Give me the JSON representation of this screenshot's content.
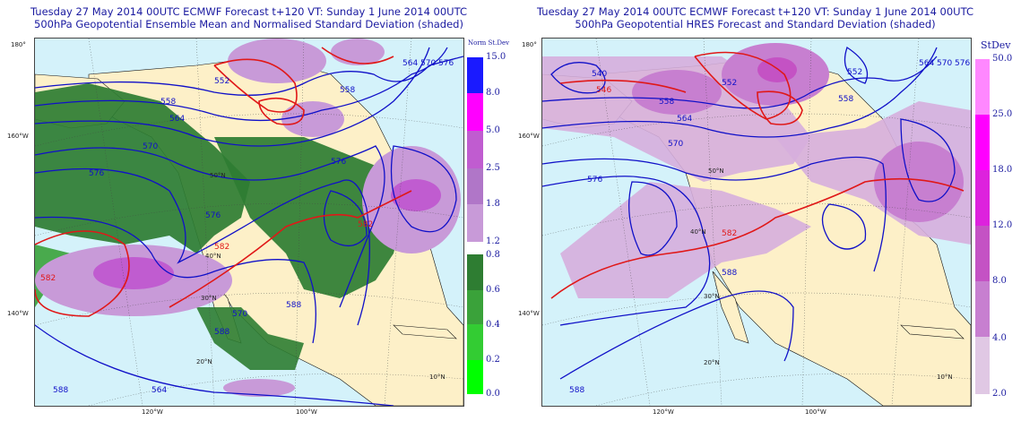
{
  "left_panel": {
    "title_line1": "Tuesday 27 May 2014 00UTC ECMWF Forecast t+120  VT: Sunday 1 June 2014 00UTC",
    "title_line2": "500hPa Geopotential Ensemble Mean and Normalised Standard Deviation (shaded)",
    "colorbar_title": "Norm St.Dev",
    "colorbar_upper": [
      {
        "label": "15.0",
        "color": "#ffffff"
      },
      {
        "label": "8.0",
        "color": "#1a1aff"
      },
      {
        "label": "5.0",
        "color": "#ff00ff"
      },
      {
        "label": "2.5",
        "color": "#c05cd0"
      },
      {
        "label": "1.8",
        "color": "#b076c8"
      },
      {
        "label": "1.2",
        "color": "#c89ad8"
      }
    ],
    "colorbar_lower": [
      {
        "label": "0.8",
        "color": "#ffffff"
      },
      {
        "label": "0.6",
        "color": "#2e7d32"
      },
      {
        "label": "0.4",
        "color": "#3aa23a"
      },
      {
        "label": "0.2",
        "color": "#33cc33"
      },
      {
        "label": "0.0",
        "color": "#00ff00"
      }
    ],
    "contour_labels": [
      "552",
      "558",
      "564",
      "570",
      "576",
      "582",
      "588",
      "582",
      "576",
      "570",
      "564",
      "558",
      "576",
      "582",
      "588",
      "588",
      "564",
      "570",
      "576"
    ],
    "lon_labels": [
      "180°",
      "160°W",
      "140°W",
      "120°W",
      "100°W"
    ],
    "lat_labels": [
      "50°N",
      "40°N",
      "30°N",
      "20°N",
      "10°N"
    ]
  },
  "right_panel": {
    "title_line1": "Tuesday 27 May 2014 00UTC ECMWF Forecast t+120  VT: Sunday 1 June 2014 00UTC",
    "title_line2": "500hPa Geopotential HRES Forecast and Standard Deviation (shaded)",
    "colorbar_title": "StDev",
    "colorbar": [
      {
        "label": "50.0",
        "color": "#ff88ff"
      },
      {
        "label": "25.0",
        "color": "#ff00ff"
      },
      {
        "label": "18.0",
        "color": "#dd22dd"
      },
      {
        "label": "12.0",
        "color": "#c452c4"
      },
      {
        "label": "8.0",
        "color": "#c77fd0"
      },
      {
        "label": "4.0",
        "color": "#d6aedd"
      },
      {
        "label": "2.0",
        "color": "#e0c8e4"
      }
    ],
    "contour_labels": [
      "540",
      "546",
      "552",
      "558",
      "564",
      "570",
      "576",
      "582",
      "588",
      "588",
      "552",
      "558",
      "564",
      "570",
      "576"
    ],
    "lon_labels": [
      "180°",
      "160°W",
      "140°W",
      "120°W",
      "100°W"
    ],
    "lat_labels": [
      "50°N",
      "40°N",
      "30°N",
      "20°N",
      "10°N"
    ]
  },
  "colors": {
    "ocean": "#d4f2fa",
    "land": "#fdf0c8",
    "green_dark": "#2e7d32",
    "contour_blue": "#1010c8",
    "contour_red": "#e01818"
  }
}
